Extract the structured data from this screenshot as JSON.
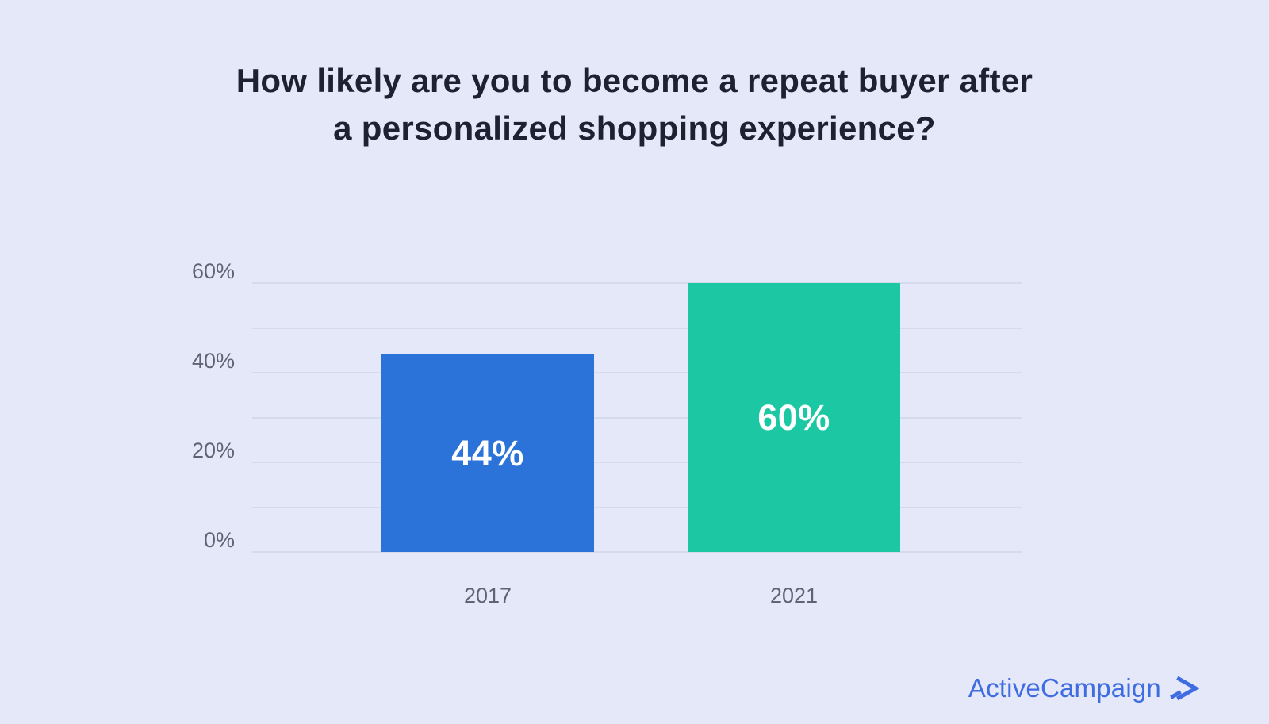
{
  "canvas": {
    "background": "#e4e8f8"
  },
  "title": {
    "lines": [
      "How likely are you to become a repeat buyer after",
      "a personalized shopping experience?"
    ],
    "color": "#1e2130"
  },
  "chart_data": {
    "type": "bar",
    "title": "How likely are you to become a repeat buyer after a personalized shopping experience?",
    "categories": [
      "2017",
      "2021"
    ],
    "values": [
      44,
      60
    ],
    "value_labels": [
      "44%",
      "60%"
    ],
    "bar_colors": [
      "#2b73d9",
      "#1bc8a3"
    ],
    "value_label_color": "#ffffff",
    "xlabel": "",
    "ylabel": "",
    "ylim": [
      0,
      60
    ],
    "gridline_step": 10,
    "grid": true,
    "gridline_color": "#d6dbec",
    "yticks": [
      {
        "value": 0,
        "label": "0%"
      },
      {
        "value": 20,
        "label": "20%"
      },
      {
        "value": 40,
        "label": "40%"
      },
      {
        "value": 60,
        "label": "60%"
      }
    ],
    "tick_label_color": "#5d6474",
    "category_label_color": "#5d6474",
    "legend_position": "none"
  },
  "footer": {
    "brand": "ActiveCampaign",
    "brand_color": "#3f6ce0",
    "chevron_icon": "double-chevron-right"
  }
}
